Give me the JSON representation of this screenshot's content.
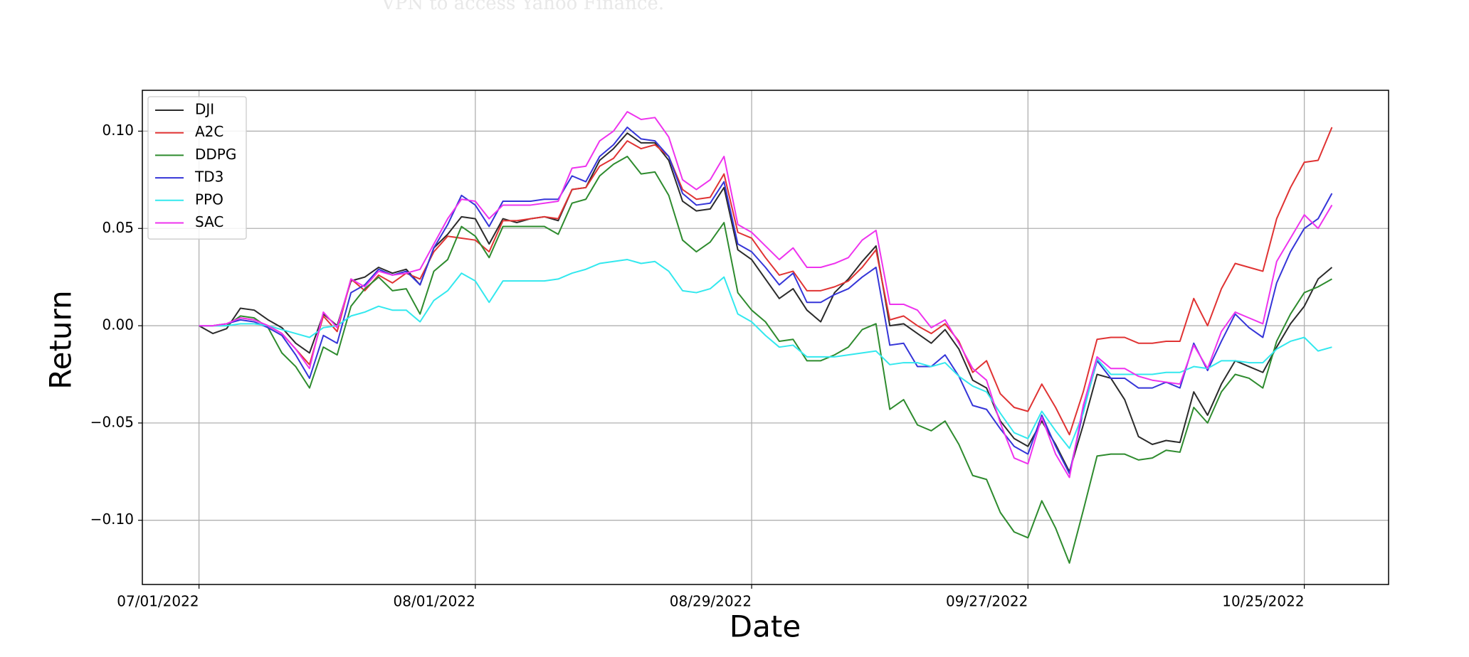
{
  "chart_data": {
    "type": "line",
    "annotation": "VPN to access Yahoo Finance.",
    "xlabel": "Date",
    "ylabel": "Return",
    "grid": true,
    "legend": "upper left",
    "x": [
      "07/01/2022",
      "07/05/2022",
      "07/06/2022",
      "07/07/2022",
      "07/08/2022",
      "07/11/2022",
      "07/12/2022",
      "07/13/2022",
      "07/14/2022",
      "07/15/2022",
      "07/18/2022",
      "07/19/2022",
      "07/20/2022",
      "07/21/2022",
      "07/22/2022",
      "07/25/2022",
      "07/26/2022",
      "07/27/2022",
      "07/28/2022",
      "07/29/2022",
      "08/01/2022",
      "08/02/2022",
      "08/03/2022",
      "08/04/2022",
      "08/05/2022",
      "08/08/2022",
      "08/09/2022",
      "08/10/2022",
      "08/11/2022",
      "08/12/2022",
      "08/15/2022",
      "08/16/2022",
      "08/17/2022",
      "08/18/2022",
      "08/19/2022",
      "08/22/2022",
      "08/23/2022",
      "08/24/2022",
      "08/25/2022",
      "08/26/2022",
      "08/29/2022",
      "08/30/2022",
      "08/31/2022",
      "09/01/2022",
      "09/02/2022",
      "09/06/2022",
      "09/07/2022",
      "09/08/2022",
      "09/09/2022",
      "09/12/2022",
      "09/13/2022",
      "09/14/2022",
      "09/15/2022",
      "09/16/2022",
      "09/19/2022",
      "09/20/2022",
      "09/21/2022",
      "09/22/2022",
      "09/23/2022",
      "09/26/2022",
      "09/27/2022",
      "09/28/2022",
      "09/29/2022",
      "09/30/2022",
      "10/03/2022",
      "10/04/2022",
      "10/05/2022",
      "10/06/2022",
      "10/07/2022",
      "10/10/2022",
      "10/11/2022",
      "10/12/2022",
      "10/13/2022",
      "10/14/2022",
      "10/17/2022",
      "10/18/2022",
      "10/19/2022",
      "10/20/2022",
      "10/21/2022",
      "10/24/2022",
      "10/25/2022",
      "10/26/2022",
      "10/27/2022"
    ],
    "xticks": [
      "07/01/2022",
      "08/01/2022",
      "08/29/2022",
      "09/27/2022",
      "10/25/2022"
    ],
    "ylim": [
      -0.133,
      0.121
    ],
    "yticks": [
      {
        "value": -0.1,
        "label": "−0.10"
      },
      {
        "value": -0.05,
        "label": "−0.05"
      },
      {
        "value": 0,
        "label": "0.00"
      },
      {
        "value": 0.05,
        "label": "0.05"
      },
      {
        "value": 0.1,
        "label": "0.10"
      }
    ],
    "series": [
      {
        "name": "DJI",
        "color": "#2b2b2b",
        "values": [
          0,
          -0.004,
          -0.0015,
          0.009,
          0.008,
          0.003,
          -0.001,
          -0.009,
          -0.014,
          0.006,
          0,
          0.023,
          0.025,
          0.03,
          0.027,
          0.029,
          0.021,
          0.04,
          0.047,
          0.056,
          0.055,
          0.042,
          0.055,
          0.053,
          0.055,
          0.056,
          0.054,
          0.07,
          0.071,
          0.085,
          0.091,
          0.099,
          0.094,
          0.094,
          0.085,
          0.064,
          0.059,
          0.06,
          0.071,
          0.039,
          0.034,
          0.024,
          0.014,
          0.019,
          0.008,
          0.002,
          0.017,
          0.024,
          0.033,
          0.041,
          0,
          0.001,
          -0.004,
          -0.009,
          -0.002,
          -0.012,
          -0.028,
          -0.032,
          -0.049,
          -0.058,
          -0.062,
          -0.049,
          -0.061,
          -0.075,
          -0.051,
          -0.025,
          -0.027,
          -0.038,
          -0.057,
          -0.061,
          -0.059,
          -0.06,
          -0.034,
          -0.046,
          -0.03,
          -0.018,
          -0.021,
          -0.024,
          -0.011,
          0.001,
          0.01,
          0.024,
          0.03
        ]
      },
      {
        "name": "A2C",
        "color": "#e03333",
        "values": [
          0,
          0,
          0.001,
          0.004,
          0.003,
          0,
          -0.004,
          -0.012,
          -0.02,
          0.005,
          -0.003,
          0.024,
          0.018,
          0.026,
          0.022,
          0.027,
          0.024,
          0.038,
          0.046,
          0.045,
          0.044,
          0.038,
          0.054,
          0.054,
          0.055,
          0.056,
          0.055,
          0.07,
          0.071,
          0.082,
          0.086,
          0.095,
          0.091,
          0.093,
          0.087,
          0.07,
          0.065,
          0.066,
          0.078,
          0.048,
          0.045,
          0.035,
          0.026,
          0.028,
          0.018,
          0.018,
          0.02,
          0.023,
          0.03,
          0.039,
          0.003,
          0.005,
          0,
          -0.004,
          0.001,
          -0.008,
          -0.024,
          -0.018,
          -0.035,
          -0.042,
          -0.044,
          -0.03,
          -0.042,
          -0.056,
          -0.034,
          -0.007,
          -0.006,
          -0.006,
          -0.009,
          -0.009,
          -0.008,
          -0.008,
          0.014,
          0,
          0.019,
          0.032,
          0.03,
          0.028,
          0.055,
          0.071,
          0.084,
          0.085,
          0.102
        ]
      },
      {
        "name": "DDPG",
        "color": "#2e8b2e",
        "values": [
          0,
          0,
          0,
          0.005,
          0.004,
          -0.001,
          -0.014,
          -0.021,
          -0.032,
          -0.011,
          -0.015,
          0.01,
          0.019,
          0.025,
          0.018,
          0.019,
          0.006,
          0.028,
          0.034,
          0.051,
          0.046,
          0.035,
          0.051,
          0.051,
          0.051,
          0.051,
          0.047,
          0.063,
          0.065,
          0.077,
          0.083,
          0.087,
          0.078,
          0.079,
          0.067,
          0.044,
          0.038,
          0.043,
          0.053,
          0.017,
          0.008,
          0.002,
          -0.008,
          -0.007,
          -0.018,
          -0.018,
          -0.015,
          -0.011,
          -0.002,
          0.001,
          -0.043,
          -0.038,
          -0.051,
          -0.054,
          -0.049,
          -0.061,
          -0.077,
          -0.079,
          -0.096,
          -0.106,
          -0.109,
          -0.09,
          -0.104,
          -0.122,
          -0.095,
          -0.067,
          -0.066,
          -0.066,
          -0.069,
          -0.068,
          -0.064,
          -0.065,
          -0.042,
          -0.05,
          -0.034,
          -0.025,
          -0.027,
          -0.032,
          -0.008,
          0.006,
          0.017,
          0.02,
          0.024
        ]
      },
      {
        "name": "TD3",
        "color": "#3535d8",
        "values": [
          0,
          0,
          0.001,
          0.003,
          0.002,
          -0.001,
          -0.005,
          -0.015,
          -0.027,
          -0.005,
          -0.009,
          0.017,
          0.021,
          0.029,
          0.026,
          0.028,
          0.021,
          0.04,
          0.052,
          0.067,
          0.062,
          0.051,
          0.064,
          0.064,
          0.064,
          0.065,
          0.065,
          0.077,
          0.074,
          0.087,
          0.093,
          0.102,
          0.096,
          0.095,
          0.087,
          0.068,
          0.062,
          0.063,
          0.074,
          0.042,
          0.038,
          0.03,
          0.021,
          0.027,
          0.012,
          0.012,
          0.016,
          0.019,
          0.025,
          0.03,
          -0.01,
          -0.009,
          -0.021,
          -0.021,
          -0.015,
          -0.026,
          -0.041,
          -0.043,
          -0.053,
          -0.062,
          -0.066,
          -0.046,
          -0.062,
          -0.076,
          -0.044,
          -0.018,
          -0.027,
          -0.027,
          -0.032,
          -0.032,
          -0.029,
          -0.032,
          -0.009,
          -0.023,
          -0.008,
          0.006,
          -0.001,
          -0.006,
          0.022,
          0.038,
          0.05,
          0.055,
          0.068
        ]
      },
      {
        "name": "PPO",
        "color": "#33e8ee",
        "values": [
          0,
          0,
          0,
          0.001,
          0.001,
          0,
          -0.002,
          -0.004,
          -0.006,
          -0.001,
          0,
          0.005,
          0.007,
          0.01,
          0.008,
          0.008,
          0.002,
          0.013,
          0.018,
          0.027,
          0.023,
          0.012,
          0.023,
          0.023,
          0.023,
          0.023,
          0.024,
          0.027,
          0.029,
          0.032,
          0.033,
          0.034,
          0.032,
          0.033,
          0.028,
          0.018,
          0.017,
          0.019,
          0.025,
          0.006,
          0.002,
          -0.005,
          -0.011,
          -0.01,
          -0.016,
          -0.016,
          -0.016,
          -0.015,
          -0.014,
          -0.013,
          -0.02,
          -0.019,
          -0.019,
          -0.021,
          -0.019,
          -0.026,
          -0.031,
          -0.034,
          -0.045,
          -0.055,
          -0.058,
          -0.044,
          -0.054,
          -0.063,
          -0.045,
          -0.017,
          -0.025,
          -0.025,
          -0.025,
          -0.025,
          -0.024,
          -0.024,
          -0.021,
          -0.022,
          -0.018,
          -0.018,
          -0.019,
          -0.019,
          -0.012,
          -0.008,
          -0.006,
          -0.013,
          -0.011
        ]
      },
      {
        "name": "SAC",
        "color": "#ee33ee",
        "values": [
          0,
          0,
          0.001,
          0.004,
          0.003,
          0,
          -0.004,
          -0.012,
          -0.022,
          0.007,
          -0.001,
          0.024,
          0.02,
          0.028,
          0.026,
          0.027,
          0.029,
          0.042,
          0.055,
          0.065,
          0.064,
          0.055,
          0.062,
          0.062,
          0.062,
          0.063,
          0.064,
          0.081,
          0.082,
          0.095,
          0.1,
          0.11,
          0.106,
          0.107,
          0.097,
          0.075,
          0.07,
          0.075,
          0.087,
          0.052,
          0.048,
          0.041,
          0.034,
          0.04,
          0.03,
          0.03,
          0.032,
          0.035,
          0.044,
          0.049,
          0.011,
          0.011,
          0.008,
          -0.001,
          0.003,
          -0.009,
          -0.022,
          -0.028,
          -0.05,
          -0.068,
          -0.071,
          -0.047,
          -0.066,
          -0.078,
          -0.041,
          -0.016,
          -0.022,
          -0.022,
          -0.026,
          -0.028,
          -0.029,
          -0.03,
          -0.01,
          -0.022,
          -0.003,
          0.007,
          0.004,
          0.001,
          0.033,
          0.045,
          0.057,
          0.05,
          0.062
        ]
      }
    ]
  }
}
